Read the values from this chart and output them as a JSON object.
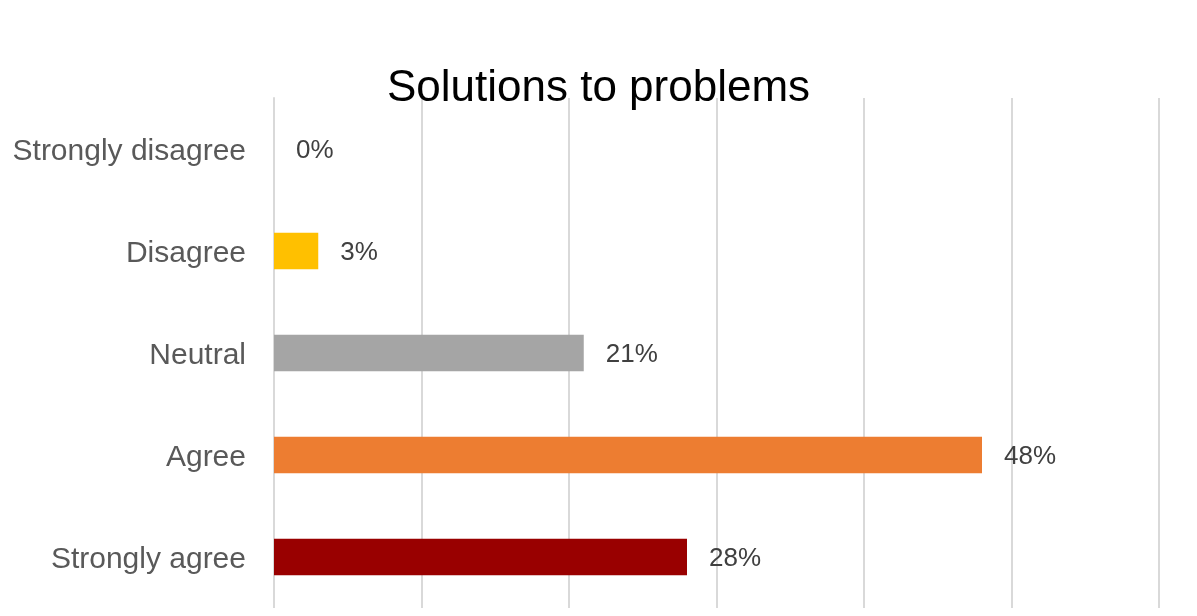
{
  "chart_data": {
    "type": "bar",
    "orientation": "horizontal",
    "title": "Solutions to problems",
    "categories": [
      "Strongly disagree",
      "Disagree",
      "Neutral",
      "Agree",
      "Strongly agree"
    ],
    "values": [
      0,
      3,
      21,
      48,
      28
    ],
    "colors": [
      "#5b9bd5",
      "#ffc000",
      "#a5a5a5",
      "#ed7d31",
      "#990000"
    ],
    "value_labels": [
      "0%",
      "3%",
      "21%",
      "48%",
      "28%"
    ],
    "xlim": [
      0,
      60
    ],
    "xticks": [
      {
        "value": 0,
        "label": null
      },
      {
        "value": 10,
        "label": null
      },
      {
        "value": 20,
        "label": null
      },
      {
        "value": 30,
        "label": null
      },
      {
        "value": 40,
        "label": null
      },
      {
        "value": 50,
        "label": null
      },
      {
        "value": 60,
        "label": null
      }
    ],
    "tick_labels": "y",
    "grid": "x"
  }
}
